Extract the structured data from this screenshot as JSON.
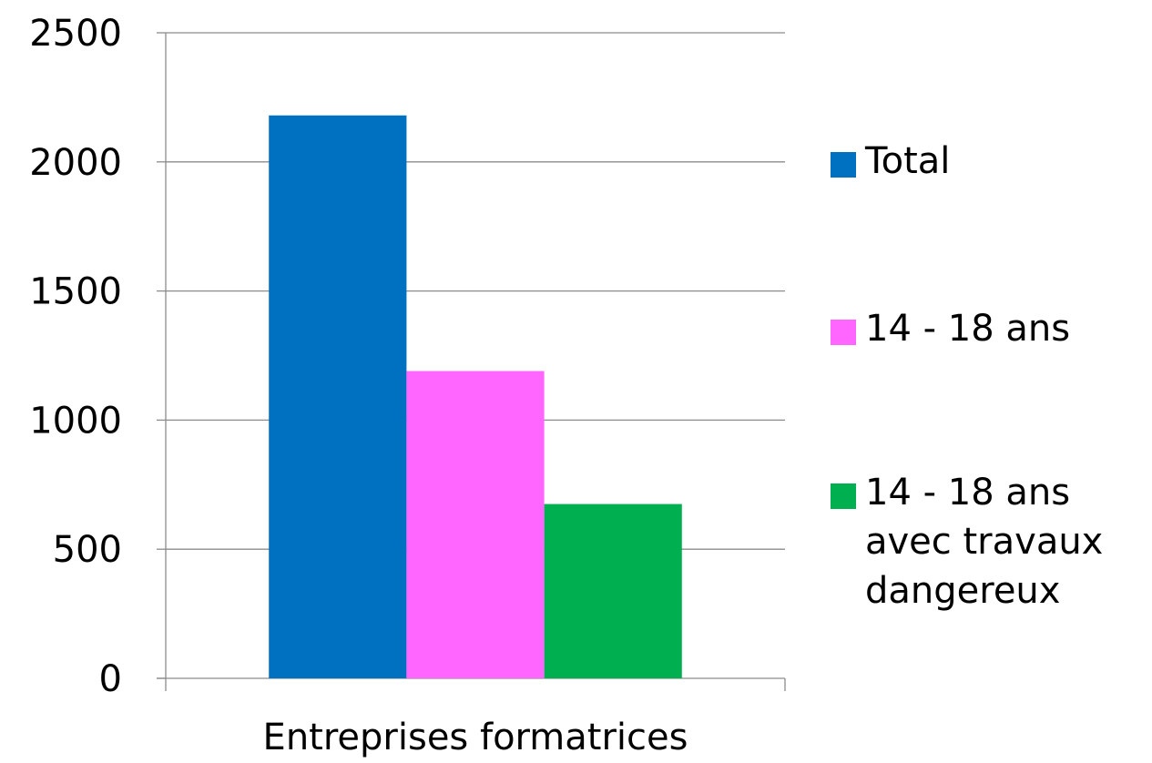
{
  "chart_data": {
    "type": "bar",
    "categories": [
      "Entreprises formatrices"
    ],
    "series": [
      {
        "name": "Total",
        "values": [
          2180
        ],
        "color": "#0070C0"
      },
      {
        "name": "14 - 18 ans",
        "values": [
          1190
        ],
        "color": "#FF66FF"
      },
      {
        "name": "14 - 18 ans avec travaux dangereux",
        "values": [
          675
        ],
        "color": "#00B050"
      }
    ],
    "y_ticks": [
      "0",
      "500",
      "1000",
      "1500",
      "2000",
      "2500"
    ],
    "ylim": [
      0,
      2500
    ],
    "grid": true,
    "legend_position": "right"
  }
}
